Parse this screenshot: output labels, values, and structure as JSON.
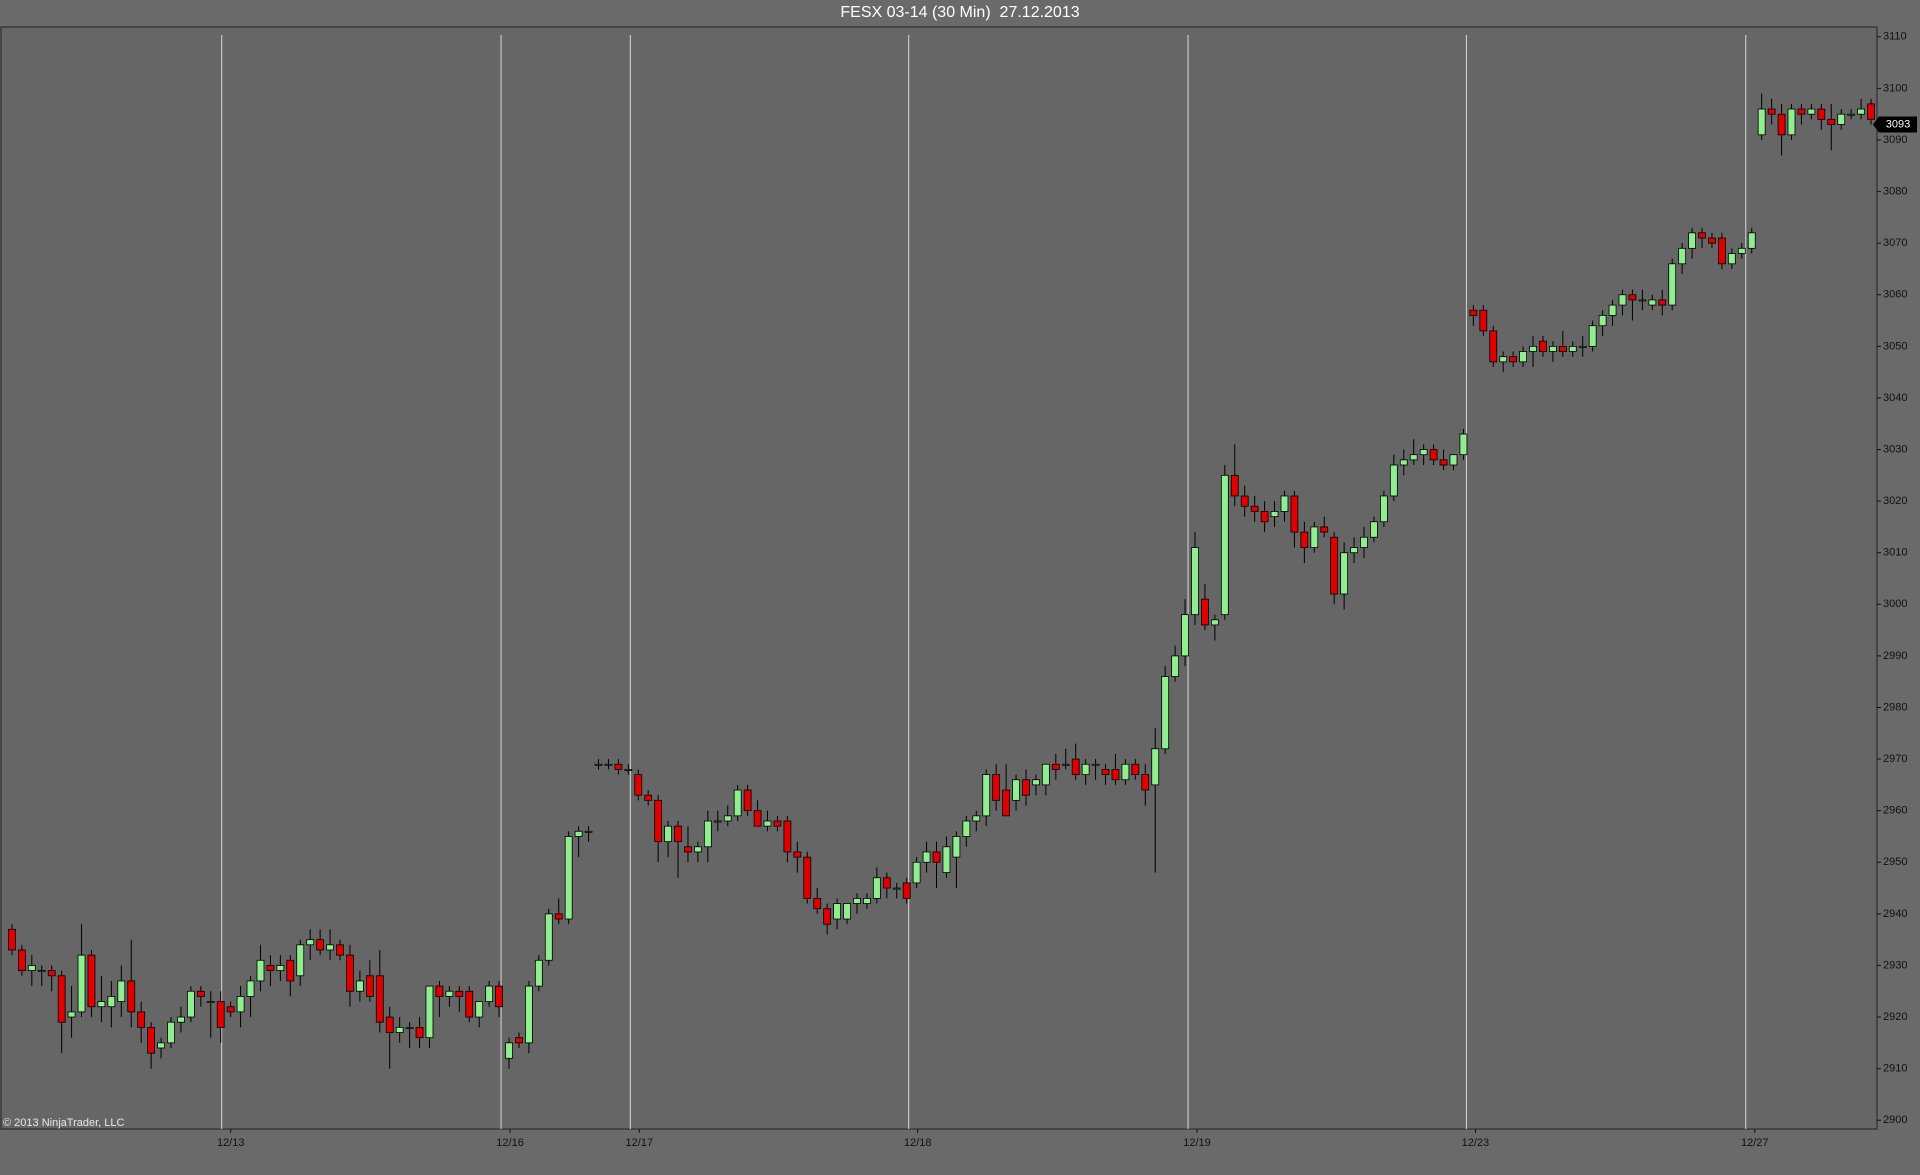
{
  "chart_data": {
    "type": "candlestick",
    "title": "FESX 03-14 (30 Min)  27.12.2013",
    "copyright": "© 2013 NinjaTrader, LLC",
    "up_color": "#90ee90",
    "down_color": "#e00000",
    "price_marker": 3093,
    "ylim": [
      2898.3,
      3111.9
    ],
    "yticks": [
      2900,
      2910,
      2920,
      2930,
      2940,
      2950,
      2960,
      2970,
      2980,
      2990,
      3000,
      3010,
      3020,
      3030,
      3040,
      3050,
      3060,
      3070,
      3080,
      3090,
      3100,
      3110
    ],
    "xlim": [
      -1.1,
      187.6
    ],
    "xticks": [
      {
        "value": 21.1,
        "label": "12/13"
      },
      {
        "value": 49.2,
        "label": "12/16"
      },
      {
        "value": 62.2,
        "label": "12/17"
      },
      {
        "value": 90.2,
        "label": "12/18"
      },
      {
        "value": 118.3,
        "label": "12/19"
      },
      {
        "value": 146.3,
        "label": "12/23"
      },
      {
        "value": 174.4,
        "label": "12/27"
      }
    ],
    "grid": true,
    "candles": [
      [
        2937,
        2938,
        2932,
        2933
      ],
      [
        2933,
        2934,
        2928,
        2929
      ],
      [
        2929,
        2932,
        2926,
        2930
      ],
      [
        2929,
        2930,
        2926,
        2929
      ],
      [
        2929,
        2930,
        2925,
        2928
      ],
      [
        2928,
        2929,
        2913,
        2919
      ],
      [
        2920,
        2926,
        2916,
        2921
      ],
      [
        2921,
        2938,
        2920,
        2932
      ],
      [
        2932,
        2933,
        2920,
        2922
      ],
      [
        2922,
        2928,
        2919,
        2923
      ],
      [
        2922,
        2927,
        2918,
        2924
      ],
      [
        2923,
        2930,
        2920,
        2927
      ],
      [
        2927,
        2935,
        2918,
        2921
      ],
      [
        2921,
        2923,
        2915,
        2918
      ],
      [
        2918,
        2919,
        2910,
        2913
      ],
      [
        2914,
        2916,
        2912,
        2915
      ],
      [
        2915,
        2920,
        2914,
        2919
      ],
      [
        2919,
        2922,
        2917,
        2920
      ],
      [
        2920,
        2926,
        2919,
        2925
      ],
      [
        2925,
        2926,
        2922,
        2924
      ],
      [
        2923,
        2925,
        2916,
        2923
      ],
      [
        2923,
        2925,
        2915,
        2918
      ],
      [
        2922,
        2923,
        2920,
        2921
      ],
      [
        2921,
        2926,
        2918,
        2924
      ],
      [
        2924,
        2928,
        2920,
        2927
      ],
      [
        2927,
        2934,
        2925,
        2931
      ],
      [
        2930,
        2932,
        2926,
        2929
      ],
      [
        2929,
        2932,
        2927,
        2930
      ],
      [
        2931,
        2932,
        2924,
        2927
      ],
      [
        2928,
        2935,
        2926,
        2934
      ],
      [
        2934,
        2937,
        2931,
        2935
      ],
      [
        2935,
        2937,
        2932,
        2933
      ],
      [
        2933,
        2937,
        2931,
        2934
      ],
      [
        2934,
        2935,
        2931,
        2932
      ],
      [
        2932,
        2934,
        2922,
        2925
      ],
      [
        2925,
        2929,
        2923,
        2927
      ],
      [
        2928,
        2931,
        2923,
        2924
      ],
      [
        2928,
        2933,
        2917,
        2919
      ],
      [
        2920,
        2922,
        2910,
        2917
      ],
      [
        2917,
        2920,
        2915,
        2918
      ],
      [
        2918,
        2919,
        2914,
        2918
      ],
      [
        2918,
        2920,
        2914,
        2916
      ],
      [
        2916,
        2926,
        2914,
        2926
      ],
      [
        2926,
        2927,
        2920,
        2924
      ],
      [
        2924,
        2926,
        2922,
        2925
      ],
      [
        2925,
        2926,
        2921,
        2924
      ],
      [
        2925,
        2926,
        2919,
        2920
      ],
      [
        2920,
        2923,
        2918,
        2923
      ],
      [
        2923,
        2927,
        2922,
        2926
      ],
      [
        2926,
        2927,
        2920,
        2922
      ],
      [
        2912,
        2916,
        2910,
        2915
      ],
      [
        2916,
        2917,
        2914,
        2915
      ],
      [
        2915,
        2927,
        2913,
        2926
      ],
      [
        2926,
        2932,
        2925,
        2931
      ],
      [
        2931,
        2941,
        2930,
        2940
      ],
      [
        2940,
        2943,
        2938,
        2939
      ],
      [
        2939,
        2956,
        2938,
        2955
      ],
      [
        2955,
        2957,
        2951,
        2956
      ],
      [
        2956,
        2957,
        2954,
        2956
      ],
      [
        2969,
        2970,
        2968,
        2969
      ],
      [
        2969,
        2970,
        2968,
        2969
      ],
      [
        2969,
        2970,
        2967,
        2968
      ],
      [
        2968,
        2969,
        2967,
        2968
      ],
      [
        2967,
        2968,
        2962,
        2963
      ],
      [
        2963,
        2964,
        2961,
        2962
      ],
      [
        2962,
        2963,
        2950,
        2954
      ],
      [
        2954,
        2958,
        2951,
        2957
      ],
      [
        2957,
        2958,
        2947,
        2954
      ],
      [
        2953,
        2957,
        2950,
        2952
      ],
      [
        2952,
        2954,
        2950,
        2953
      ],
      [
        2953,
        2960,
        2950,
        2958
      ],
      [
        2958,
        2960,
        2956,
        2958
      ],
      [
        2958,
        2961,
        2957,
        2959
      ],
      [
        2959,
        2965,
        2958,
        2964
      ],
      [
        2964,
        2965,
        2959,
        2960
      ],
      [
        2960,
        2962,
        2957,
        2957
      ],
      [
        2957,
        2960,
        2956,
        2958
      ],
      [
        2958,
        2959,
        2956,
        2957
      ],
      [
        2958,
        2959,
        2950,
        2952
      ],
      [
        2952,
        2954,
        2948,
        2951
      ],
      [
        2951,
        2952,
        2942,
        2943
      ],
      [
        2943,
        2945,
        2940,
        2941
      ],
      [
        2941,
        2942,
        2936,
        2938
      ],
      [
        2939,
        2943,
        2937,
        2942
      ],
      [
        2939,
        2942,
        2938,
        2942
      ],
      [
        2942,
        2944,
        2940,
        2943
      ],
      [
        2942,
        2944,
        2941,
        2943
      ],
      [
        2943,
        2949,
        2942,
        2947
      ],
      [
        2947,
        2948,
        2943,
        2945
      ],
      [
        2945,
        2946,
        2943,
        2945
      ],
      [
        2946,
        2947,
        2942,
        2943
      ],
      [
        2946,
        2951,
        2945,
        2950
      ],
      [
        2950,
        2954,
        2948,
        2952
      ],
      [
        2952,
        2954,
        2945,
        2950
      ],
      [
        2948,
        2955,
        2947,
        2953
      ],
      [
        2951,
        2956,
        2945,
        2955
      ],
      [
        2955,
        2959,
        2953,
        2958
      ],
      [
        2958,
        2960,
        2956,
        2959
      ],
      [
        2959,
        2968,
        2957,
        2967
      ],
      [
        2967,
        2969,
        2960,
        2962
      ],
      [
        2964,
        2969,
        2959,
        2959
      ],
      [
        2962,
        2967,
        2960,
        2966
      ],
      [
        2966,
        2968,
        2961,
        2963
      ],
      [
        2965,
        2967,
        2963,
        2966
      ],
      [
        2965,
        2969,
        2963,
        2969
      ],
      [
        2969,
        2971,
        2966,
        2968
      ],
      [
        2969,
        2972,
        2968,
        2969
      ],
      [
        2970,
        2973,
        2966,
        2967
      ],
      [
        2967,
        2970,
        2965,
        2969
      ],
      [
        2969,
        2970,
        2966,
        2969
      ],
      [
        2968,
        2969,
        2965,
        2967
      ],
      [
        2968,
        2971,
        2965,
        2966
      ],
      [
        2966,
        2970,
        2965,
        2969
      ],
      [
        2969,
        2970,
        2966,
        2967
      ],
      [
        2967,
        2969,
        2961,
        2964
      ],
      [
        2965,
        2976,
        2948,
        2972
      ],
      [
        2972,
        2988,
        2971,
        2986
      ],
      [
        2986,
        2992,
        2985,
        2990
      ],
      [
        2990,
        3001,
        2988,
        2998
      ],
      [
        2998,
        3014,
        2996,
        3011
      ],
      [
        3001,
        3004,
        2995,
        2996
      ],
      [
        2996,
        2998,
        2993,
        2997
      ],
      [
        2998,
        3027,
        2997,
        3025
      ],
      [
        3025,
        3031,
        3019,
        3021
      ],
      [
        3021,
        3023,
        3017,
        3019
      ],
      [
        3019,
        3021,
        3016,
        3018
      ],
      [
        3018,
        3020,
        3014,
        3016
      ],
      [
        3017,
        3020,
        3015,
        3018
      ],
      [
        3018,
        3022,
        3016,
        3021
      ],
      [
        3021,
        3022,
        3011,
        3014
      ],
      [
        3014,
        3016,
        3008,
        3011
      ],
      [
        3011,
        3016,
        3010,
        3015
      ],
      [
        3015,
        3017,
        3013,
        3014
      ],
      [
        3013,
        3014,
        3000,
        3002
      ],
      [
        3002,
        3012,
        2999,
        3010
      ],
      [
        3010,
        3013,
        3008,
        3011
      ],
      [
        3011,
        3015,
        3009,
        3013
      ],
      [
        3013,
        3017,
        3012,
        3016
      ],
      [
        3016,
        3022,
        3015,
        3021
      ],
      [
        3021,
        3029,
        3020,
        3027
      ],
      [
        3027,
        3030,
        3025,
        3028
      ],
      [
        3028,
        3032,
        3027,
        3029
      ],
      [
        3029,
        3031,
        3027,
        3030
      ],
      [
        3030,
        3031,
        3027,
        3028
      ],
      [
        3028,
        3030,
        3026,
        3027
      ],
      [
        3027,
        3029,
        3026,
        3029
      ],
      [
        3029,
        3034,
        3028,
        3033
      ],
      [
        3057,
        3058,
        3054,
        3056
      ],
      [
        3057,
        3058,
        3052,
        3053
      ],
      [
        3053,
        3054,
        3046,
        3047
      ],
      [
        3047,
        3049,
        3045,
        3048
      ],
      [
        3048,
        3049,
        3046,
        3047
      ],
      [
        3047,
        3050,
        3046,
        3049
      ],
      [
        3049,
        3052,
        3046,
        3050
      ],
      [
        3051,
        3052,
        3048,
        3049
      ],
      [
        3049,
        3051,
        3047,
        3050
      ],
      [
        3050,
        3053,
        3048,
        3049
      ],
      [
        3049,
        3051,
        3048,
        3050
      ],
      [
        3050,
        3052,
        3048,
        3050
      ],
      [
        3050,
        3055,
        3049,
        3054
      ],
      [
        3054,
        3057,
        3052,
        3056
      ],
      [
        3056,
        3059,
        3054,
        3058
      ],
      [
        3058,
        3061,
        3056,
        3060
      ],
      [
        3060,
        3061,
        3055,
        3059
      ],
      [
        3059,
        3061,
        3057,
        3059
      ],
      [
        3058,
        3060,
        3057,
        3059
      ],
      [
        3059,
        3061,
        3056,
        3058
      ],
      [
        3058,
        3067,
        3057,
        3066
      ],
      [
        3066,
        3070,
        3064,
        3069
      ],
      [
        3069,
        3073,
        3067,
        3072
      ],
      [
        3072,
        3073,
        3069,
        3071
      ],
      [
        3071,
        3072,
        3069,
        3070
      ],
      [
        3071,
        3072,
        3065,
        3066
      ],
      [
        3066,
        3069,
        3065,
        3068
      ],
      [
        3068,
        3070,
        3067,
        3069
      ],
      [
        3069,
        3073,
        3068,
        3072
      ],
      [
        3091,
        3099,
        3090,
        3096
      ],
      [
        3096,
        3098,
        3093,
        3095
      ],
      [
        3095,
        3097,
        3087,
        3091
      ],
      [
        3091,
        3097,
        3090,
        3096
      ],
      [
        3096,
        3097,
        3093,
        3095
      ],
      [
        3095,
        3097,
        3094,
        3096
      ],
      [
        3096,
        3097,
        3092,
        3094
      ],
      [
        3094,
        3097,
        3088,
        3093
      ],
      [
        3093,
        3096,
        3092,
        3095
      ],
      [
        3095,
        3096,
        3094,
        3095
      ],
      [
        3095,
        3098,
        3094,
        3096
      ],
      [
        3097,
        3098,
        3093,
        3094
      ]
    ]
  }
}
